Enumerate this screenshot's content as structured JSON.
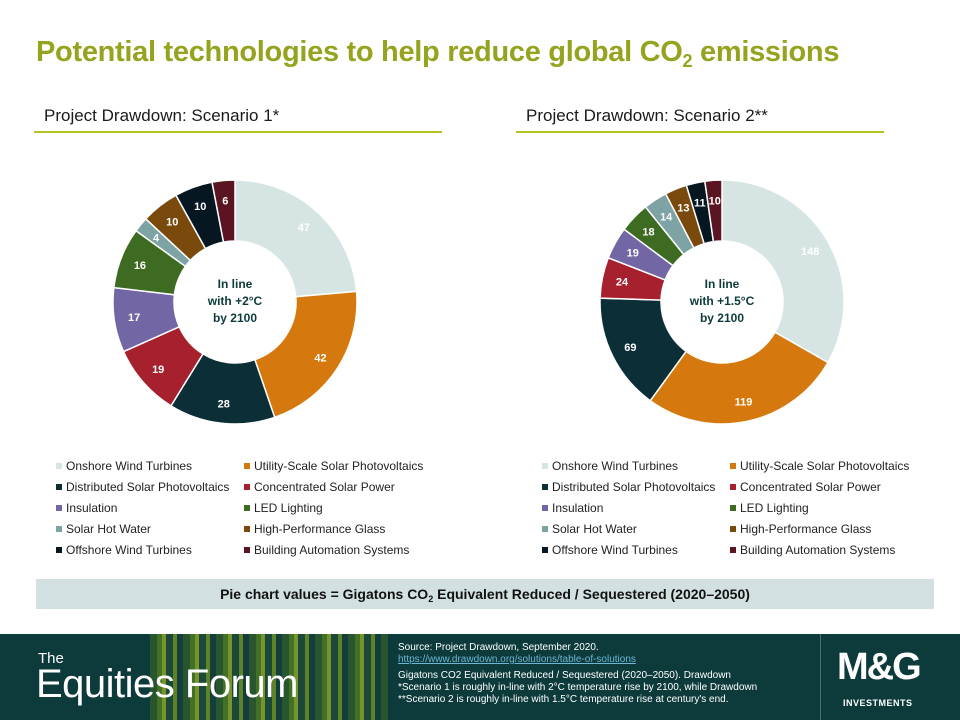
{
  "page": {
    "title_main": "Potential technologies to help reduce global CO",
    "title_sub": "2",
    "title_tail": " emissions"
  },
  "categories": [
    "Onshore Wind Turbines",
    "Utility-Scale Solar Photovoltaics",
    "Distributed Solar Photovoltaics",
    "Concentrated Solar Power",
    "Insulation",
    "LED Lighting",
    "Solar Hot Water",
    "High-Performance Glass",
    "Offshore Wind Turbines",
    "Building Automation Systems"
  ],
  "colors": [
    "#d6e4e4",
    "#d5790e",
    "#0c2e36",
    "#a6202e",
    "#7266a4",
    "#3d6b22",
    "#7ea3a4",
    "#7a4a0c",
    "#071722",
    "#5a1422"
  ],
  "chart_data": [
    {
      "type": "pie",
      "title": "Project Drawdown: Scenario 1*",
      "center_label": [
        "In line",
        "with +2°C",
        "by 2100"
      ],
      "categories": [
        "Onshore Wind Turbines",
        "Utility-Scale Solar Photovoltaics",
        "Distributed Solar Photovoltaics",
        "Concentrated Solar Power",
        "Insulation",
        "LED Lighting",
        "Solar Hot Water",
        "High-Performance Glass",
        "Offshore Wind Turbines",
        "Building Automation Systems"
      ],
      "values": [
        47,
        42,
        28,
        19,
        17,
        16,
        4,
        10,
        10,
        6
      ],
      "legend": "bottom"
    },
    {
      "type": "pie",
      "title": "Project Drawdown: Scenario 2**",
      "center_label": [
        "In line",
        "with +1.5°C",
        "by 2100"
      ],
      "categories": [
        "Onshore Wind Turbines",
        "Utility-Scale Solar Photovoltaics",
        "Distributed Solar Photovoltaics",
        "Concentrated Solar Power",
        "Insulation",
        "LED Lighting",
        "Solar Hot Water",
        "High-Performance Glass",
        "Offshore Wind Turbines",
        "Building Automation Systems"
      ],
      "values": [
        148,
        119,
        69,
        24,
        19,
        18,
        14,
        13,
        11,
        10
      ],
      "legend": "bottom"
    }
  ],
  "units": {
    "main": "Pie chart values = Gigatons CO",
    "sub": "2",
    "tail": " Equivalent Reduced / Sequestered (2020–2050)"
  },
  "footer": {
    "brand_line1": "The",
    "brand_line2": "Equities Forum",
    "source": "Source: Project Drawdown, September 2020.",
    "link": "https://www.drawdown.org/solutions/table-of-solutions",
    "note1": "Gigatons CO2 Equivalent Reduced / Sequestered (2020–2050). Drawdown",
    "note2": "*Scenario 1 is roughly in-line  with 2°C temperature rise by 2100, while Drawdown",
    "note3": "**Scenario 2 is roughly in-line with 1.5°C temperature rise at century's end.",
    "logo_main": "M&G",
    "logo_sub": "INVESTMENTS"
  }
}
